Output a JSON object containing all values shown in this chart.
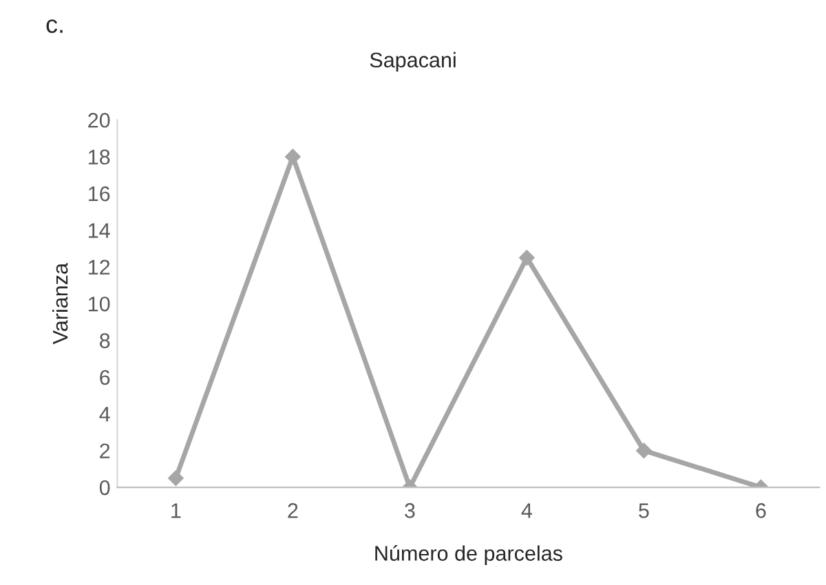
{
  "chart_data": {
    "type": "line",
    "title": "Sapacani",
    "xlabel": "Número de parcelas",
    "ylabel": "Varianza",
    "annotations": [
      "c."
    ],
    "categories": [
      "1",
      "2",
      "3",
      "4",
      "5",
      "6"
    ],
    "series": [
      {
        "color": "#a6a6a6",
        "values": [
          0.5,
          18,
          0,
          12.5,
          2,
          0
        ]
      }
    ],
    "ylim": [
      0,
      20
    ],
    "yticks": [
      0,
      2,
      4,
      6,
      8,
      10,
      12,
      14,
      16,
      18,
      20
    ],
    "marker": "diamond",
    "line_style": "solid",
    "grid": false,
    "legend": false
  }
}
